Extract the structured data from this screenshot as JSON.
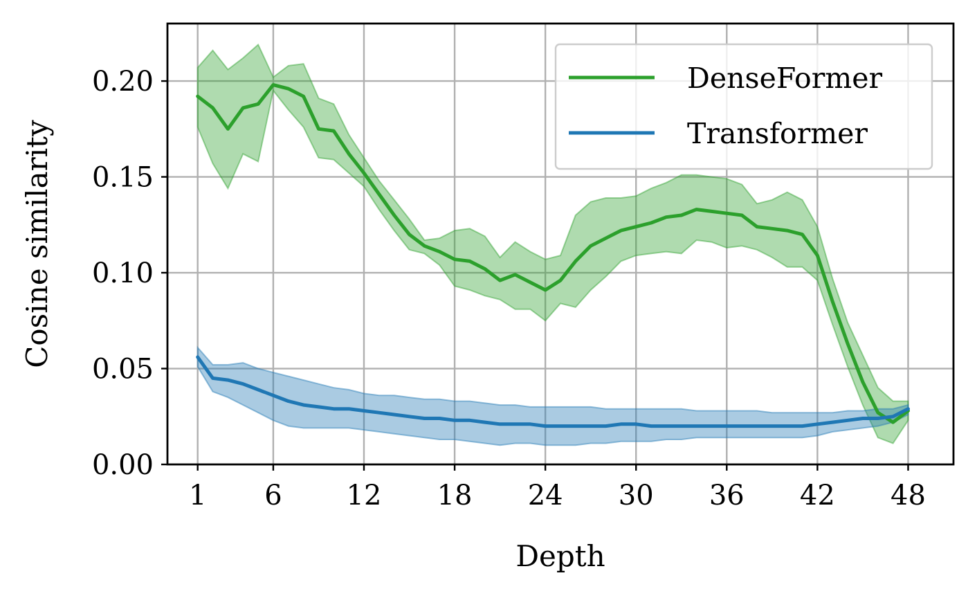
{
  "chart_data": {
    "type": "line",
    "xlabel": "Depth",
    "ylabel": "Cosine similarity",
    "xlim": [
      -1,
      51
    ],
    "ylim": [
      0,
      0.23
    ],
    "xticks": [
      1,
      6,
      12,
      18,
      24,
      30,
      36,
      42,
      48
    ],
    "xtick_labels": [
      "1",
      "6",
      "12",
      "18",
      "24",
      "30",
      "36",
      "42",
      "48"
    ],
    "yticks": [
      0,
      0.05,
      0.1,
      0.15,
      0.2
    ],
    "ytick_labels": [
      "0.00",
      "0.05",
      "0.10",
      "0.15",
      "0.20"
    ],
    "grid": true,
    "legend_position": "top-right",
    "x": [
      1,
      2,
      3,
      4,
      5,
      6,
      7,
      8,
      9,
      10,
      11,
      12,
      13,
      14,
      15,
      16,
      17,
      18,
      19,
      20,
      21,
      22,
      23,
      24,
      25,
      26,
      27,
      28,
      29,
      30,
      31,
      32,
      33,
      34,
      35,
      36,
      37,
      38,
      39,
      40,
      41,
      42,
      43,
      44,
      45,
      46,
      47,
      48
    ],
    "series": [
      {
        "name": "DenseFormer",
        "color": "#2ca02c",
        "values": [
          0.192,
          0.186,
          0.175,
          0.186,
          0.188,
          0.198,
          0.196,
          0.192,
          0.175,
          0.174,
          0.162,
          0.152,
          0.141,
          0.13,
          0.12,
          0.114,
          0.111,
          0.107,
          0.106,
          0.102,
          0.096,
          0.099,
          0.095,
          0.091,
          0.096,
          0.106,
          0.114,
          0.118,
          0.122,
          0.124,
          0.126,
          0.129,
          0.13,
          0.133,
          0.132,
          0.131,
          0.13,
          0.124,
          0.123,
          0.122,
          0.12,
          0.109,
          0.085,
          0.063,
          0.043,
          0.027,
          0.022,
          0.028
        ],
        "lower": [
          0.176,
          0.157,
          0.144,
          0.162,
          0.158,
          0.195,
          0.185,
          0.176,
          0.16,
          0.159,
          0.152,
          0.145,
          0.133,
          0.122,
          0.112,
          0.11,
          0.104,
          0.093,
          0.091,
          0.088,
          0.086,
          0.081,
          0.081,
          0.075,
          0.084,
          0.082,
          0.091,
          0.098,
          0.106,
          0.109,
          0.11,
          0.111,
          0.11,
          0.117,
          0.116,
          0.113,
          0.114,
          0.112,
          0.108,
          0.103,
          0.103,
          0.096,
          0.073,
          0.051,
          0.031,
          0.014,
          0.011,
          0.023
        ],
        "upper": [
          0.207,
          0.216,
          0.206,
          0.212,
          0.219,
          0.202,
          0.208,
          0.209,
          0.191,
          0.188,
          0.172,
          0.16,
          0.148,
          0.138,
          0.128,
          0.117,
          0.118,
          0.122,
          0.123,
          0.119,
          0.108,
          0.116,
          0.111,
          0.107,
          0.109,
          0.13,
          0.137,
          0.139,
          0.139,
          0.14,
          0.144,
          0.147,
          0.151,
          0.151,
          0.15,
          0.149,
          0.146,
          0.136,
          0.138,
          0.142,
          0.138,
          0.124,
          0.097,
          0.074,
          0.057,
          0.04,
          0.033,
          0.033
        ]
      },
      {
        "name": "Transformer",
        "color": "#1f77b4",
        "values": [
          0.056,
          0.045,
          0.044,
          0.042,
          0.039,
          0.036,
          0.033,
          0.031,
          0.03,
          0.029,
          0.029,
          0.028,
          0.027,
          0.026,
          0.025,
          0.024,
          0.024,
          0.023,
          0.023,
          0.022,
          0.021,
          0.021,
          0.021,
          0.02,
          0.02,
          0.02,
          0.02,
          0.02,
          0.021,
          0.021,
          0.02,
          0.02,
          0.02,
          0.02,
          0.02,
          0.02,
          0.02,
          0.02,
          0.02,
          0.02,
          0.02,
          0.021,
          0.022,
          0.023,
          0.024,
          0.024,
          0.025,
          0.029
        ],
        "lower": [
          0.051,
          0.038,
          0.035,
          0.031,
          0.027,
          0.023,
          0.02,
          0.019,
          0.019,
          0.019,
          0.019,
          0.018,
          0.017,
          0.016,
          0.015,
          0.014,
          0.013,
          0.013,
          0.012,
          0.011,
          0.01,
          0.011,
          0.011,
          0.01,
          0.01,
          0.01,
          0.011,
          0.011,
          0.012,
          0.012,
          0.012,
          0.013,
          0.013,
          0.014,
          0.014,
          0.014,
          0.014,
          0.014,
          0.014,
          0.014,
          0.014,
          0.015,
          0.017,
          0.018,
          0.019,
          0.02,
          0.022,
          0.026
        ],
        "upper": [
          0.061,
          0.052,
          0.052,
          0.053,
          0.05,
          0.048,
          0.046,
          0.044,
          0.042,
          0.04,
          0.039,
          0.037,
          0.036,
          0.036,
          0.035,
          0.034,
          0.034,
          0.033,
          0.033,
          0.032,
          0.031,
          0.031,
          0.03,
          0.03,
          0.03,
          0.03,
          0.03,
          0.029,
          0.029,
          0.029,
          0.029,
          0.029,
          0.029,
          0.028,
          0.028,
          0.028,
          0.028,
          0.028,
          0.027,
          0.027,
          0.027,
          0.027,
          0.027,
          0.028,
          0.028,
          0.029,
          0.029,
          0.031
        ]
      }
    ]
  }
}
